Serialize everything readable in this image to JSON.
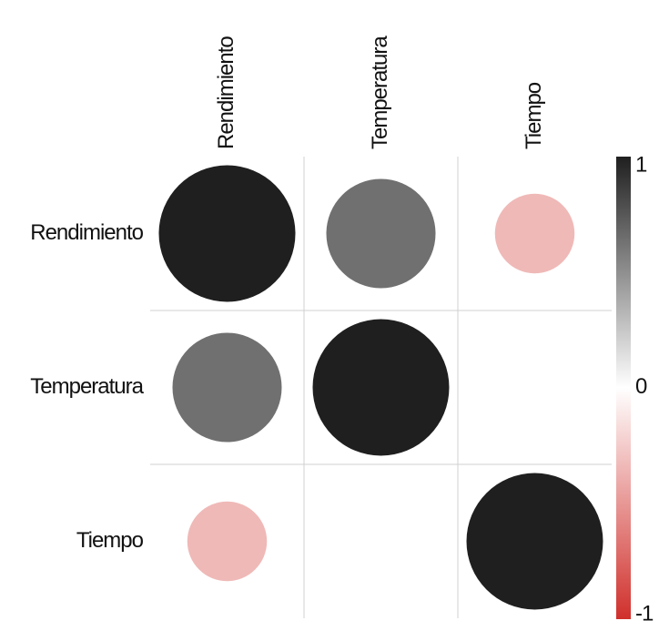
{
  "chart_data": {
    "type": "corrplot",
    "categories": [
      "Rendimiento",
      "Temperatura",
      "Tiempo"
    ],
    "values": [
      [
        1,
        0.64,
        -0.34
      ],
      [
        0.64,
        1,
        0
      ],
      [
        -0.34,
        0,
        1
      ]
    ],
    "colorscale": [
      "#d0302c",
      "#ffffff",
      "#1f1f1f"
    ],
    "ylim": [
      -1,
      1
    ],
    "yticks": [
      -1,
      0,
      1
    ],
    "grid": true
  }
}
